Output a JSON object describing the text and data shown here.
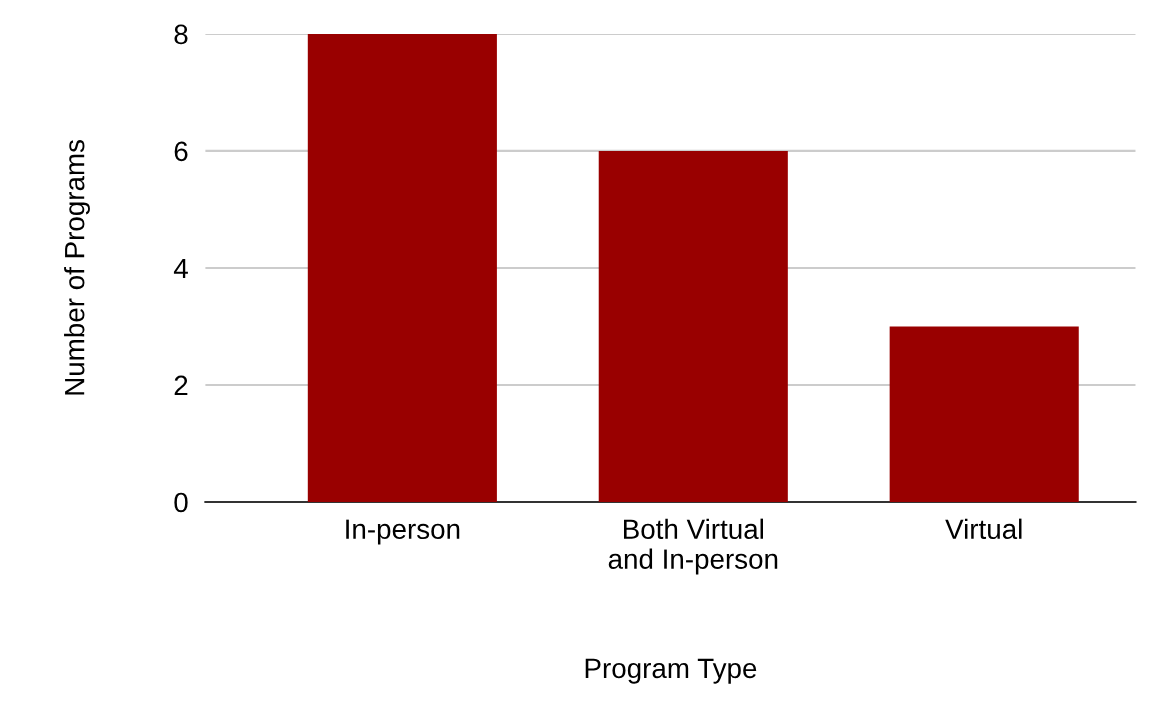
{
  "chart_data": {
    "type": "bar",
    "xlabel": "Program Type",
    "ylabel": "Number of Programs",
    "categories": [
      "In-person",
      "Both Virtual\nand In-person",
      "Virtual"
    ],
    "values": [
      8,
      6,
      3
    ],
    "color": "#990000",
    "ylim": [
      0,
      8
    ],
    "yticks": [
      0,
      2,
      4,
      6,
      8
    ],
    "grid": "y",
    "legend": false
  }
}
